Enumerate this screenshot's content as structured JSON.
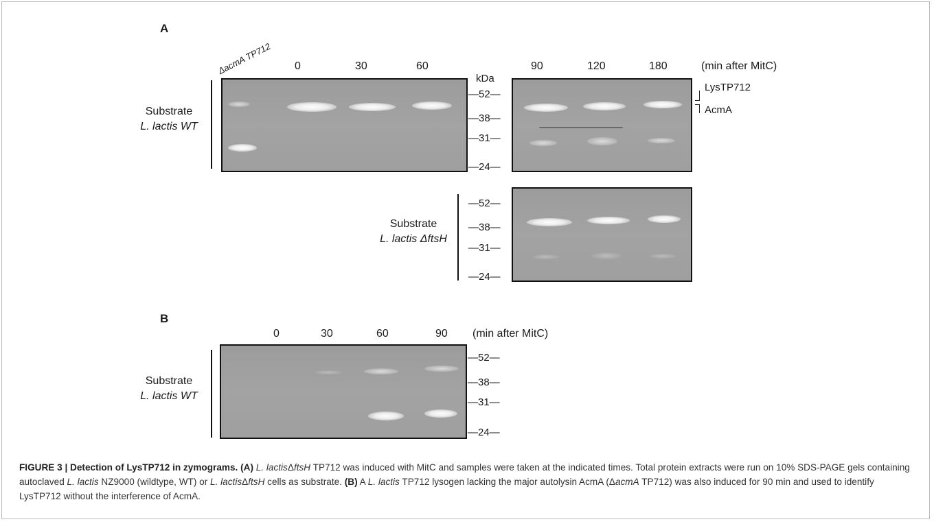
{
  "panelA": {
    "letter": "A",
    "lane_label_acma": "ΔacmA TP712",
    "times_left": [
      "0",
      "30",
      "60"
    ],
    "times_right": [
      "90",
      "120",
      "180"
    ],
    "time_unit": "(min after MitC)",
    "kda_label": "kDa",
    "markers_top": [
      "—52—",
      "—38—",
      "—31—",
      "—24—"
    ],
    "markers_bottom": [
      "—52—",
      "—38—",
      "—31—",
      "—24—"
    ],
    "band_label_lys": "LysTP712",
    "band_label_acma": "AcmA",
    "substrate_wt_line1": "Substrate",
    "substrate_wt_line2": "L. lactis WT",
    "substrate_fts_line1": "Substrate",
    "substrate_fts_line2": "L. lactis ΔftsH"
  },
  "panelB": {
    "letter": "B",
    "times": [
      "0",
      "30",
      "60",
      "90"
    ],
    "time_unit": "(min after MitC)",
    "markers": [
      "—52—",
      "—38—",
      "—31—",
      "—24—"
    ],
    "substrate_line1": "Substrate",
    "substrate_line2": "L. lactis WT"
  },
  "caption": {
    "fig_label": "FIGURE 3 | Detection of LysTP712 in zymograms.",
    "a_tag": "(A)",
    "a_sp1": "L. lactis",
    "a_t1": "Δ",
    "a_sp2": "ftsH",
    "a_t2": " TP712 was induced with MitC and samples were taken at the indicated times. Total protein extracts were run on 10% SDS-PAGE gels containing autoclaved ",
    "a_sp3": "L. lactis",
    "a_t3": " NZ9000 (wildtype, WT) or ",
    "a_sp4": "L. lactis",
    "a_t4": "Δ",
    "a_sp5": "ftsH",
    "a_t5": " cells as substrate.",
    "b_tag": "(B)",
    "b_t1": "A ",
    "b_sp1": "L. lactis",
    "b_t2": " TP712 lysogen lacking the major autolysin AcmA (Δ",
    "b_sp2": "acmA",
    "b_t3": " TP712) was also induced for 90 min and used to identify LysTP712 without the interference of AcmA."
  }
}
